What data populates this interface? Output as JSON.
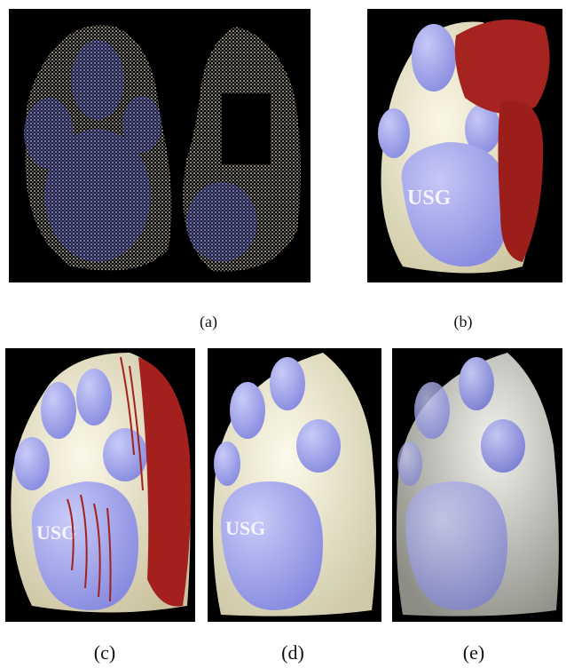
{
  "figure": {
    "panels": [
      {
        "id": "a",
        "caption": "(a)",
        "content": "point-cloud-scans"
      },
      {
        "id": "b",
        "caption": "(b)",
        "content": "registered-scans-red-overlay"
      },
      {
        "id": "c",
        "caption": "(c)",
        "content": "merged-mesh-red-artifacts"
      },
      {
        "id": "d",
        "caption": "(d)",
        "content": "reconstructed-mesh"
      },
      {
        "id": "e",
        "caption": "(e)",
        "content": "shaded-reconstruction"
      }
    ],
    "paw_stamp_text": "USG",
    "colors": {
      "background": "#000000",
      "paw_body": "#ede8d2",
      "paw_pads": "#9a9cec",
      "artifact_red": "#a8201c"
    }
  }
}
